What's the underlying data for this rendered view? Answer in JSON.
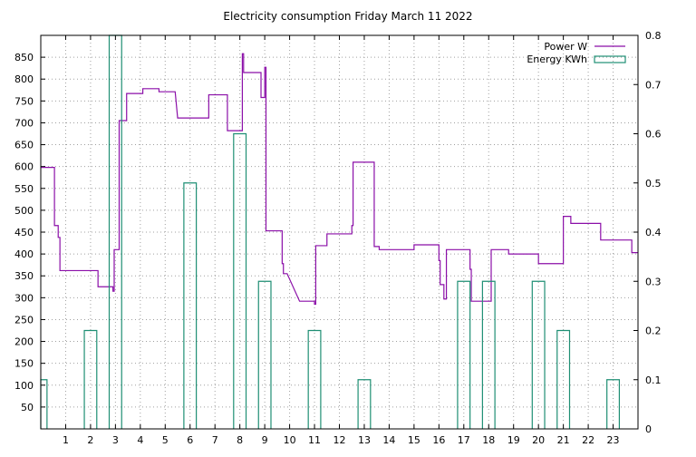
{
  "chart_data": {
    "type": "line",
    "title": "Electricity consumption Friday March 11 2022",
    "xlabel": "",
    "x_ticks": [
      "1",
      "2",
      "3",
      "4",
      "5",
      "6",
      "7",
      "8",
      "9",
      "10",
      "11",
      "12",
      "13",
      "14",
      "15",
      "16",
      "17",
      "18",
      "19",
      "20",
      "21",
      "22",
      "23"
    ],
    "xlim": [
      0,
      24
    ],
    "y_left": {
      "label": "",
      "ylim": [
        0,
        900
      ],
      "ticks": [
        "50",
        "100",
        "150",
        "200",
        "250",
        "300",
        "350",
        "400",
        "450",
        "500",
        "550",
        "600",
        "650",
        "700",
        "750",
        "800",
        "850"
      ]
    },
    "y_right": {
      "label": "",
      "ylim": [
        0,
        0.8
      ],
      "ticks": [
        "0",
        "0.1",
        "0.2",
        "0.3",
        "0.4",
        "0.5",
        "0.6",
        "0.7",
        "0.8"
      ]
    },
    "grid": true,
    "legend_position": "top-right",
    "series": [
      {
        "name": "Power W",
        "type": "step-line",
        "axis": "left",
        "color": "#8b0fa8",
        "x": [
          0.0,
          0.55,
          0.55,
          0.7,
          0.7,
          0.77,
          0.77,
          0.8,
          1.45,
          2.3,
          2.3,
          2.9,
          2.9,
          2.95,
          2.95,
          3.15,
          3.15,
          3.25,
          3.25,
          3.45,
          3.45,
          4.1,
          4.1,
          4.75,
          4.75,
          5.4,
          5.4,
          5.5,
          6.0,
          6.75,
          6.75,
          7.5,
          7.5,
          8.1,
          8.1,
          8.15,
          8.15,
          8.2,
          8.2,
          8.85,
          8.85,
          9.0,
          9.0,
          9.05,
          9.05,
          9.7,
          9.7,
          9.75,
          9.75,
          9.9,
          10.4,
          11.0,
          11.0,
          11.05,
          11.05,
          11.5,
          11.5,
          12.5,
          12.5,
          12.55,
          12.55,
          13.4,
          13.4,
          13.6,
          13.6,
          14.5,
          14.5,
          15.0,
          15.0,
          16.0,
          16.0,
          16.05,
          16.05,
          16.2,
          16.2,
          16.3,
          16.3,
          16.9,
          17.0,
          17.25,
          17.25,
          17.3,
          17.3,
          18.0,
          18.0,
          18.1,
          18.1,
          18.8,
          18.8,
          20.0,
          20.0,
          21.0,
          21.0,
          21.3,
          21.3,
          22.5,
          22.5,
          23.75,
          23.75,
          24.0
        ],
        "values": [
          598,
          598,
          465,
          465,
          438,
          438,
          362,
          362,
          362,
          362,
          325,
          325,
          315,
          315,
          410,
          410,
          705,
          705,
          705,
          705,
          767,
          767,
          778,
          778,
          771,
          771,
          771,
          711,
          711,
          711,
          764,
          764,
          682,
          682,
          858,
          858,
          815,
          815,
          815,
          815,
          758,
          758,
          827,
          827,
          453,
          453,
          378,
          378,
          355,
          355,
          292,
          292,
          285,
          285,
          419,
          419,
          446,
          446,
          465,
          465,
          610,
          610,
          417,
          417,
          410,
          410,
          410,
          410,
          421,
          421,
          385,
          385,
          330,
          330,
          297,
          297,
          410,
          410,
          410,
          410,
          365,
          365,
          292,
          292,
          292,
          292,
          410,
          410,
          400,
          400,
          378,
          378,
          486,
          486,
          470,
          470,
          432,
          432,
          403,
          403
        ]
      },
      {
        "name": "Energy KWh",
        "type": "bar",
        "axis": "right",
        "color": "#1f8f74",
        "x": [
          0,
          2,
          3,
          6,
          8,
          9,
          11,
          13,
          17,
          18,
          20,
          21,
          23
        ],
        "values": [
          0.1,
          0.2,
          0.8,
          0.5,
          0.6,
          0.3,
          0.2,
          0.1,
          0.3,
          0.3,
          0.3,
          0.2,
          0.1
        ]
      }
    ]
  }
}
